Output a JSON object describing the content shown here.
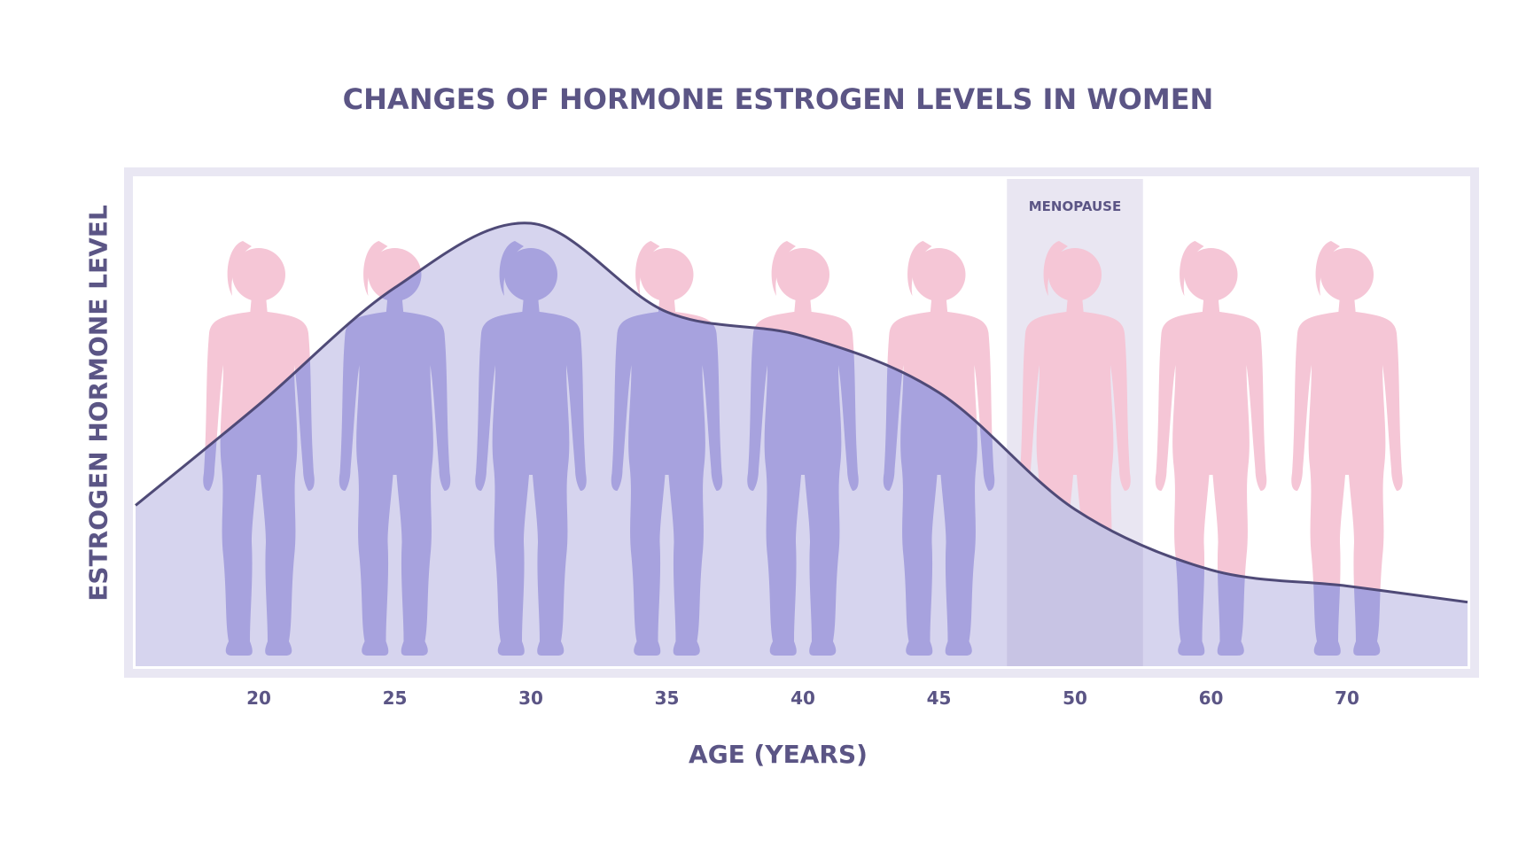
{
  "chart_data": {
    "type": "area",
    "title": "CHANGES OF HORMONE ESTROGEN LEVELS IN WOMEN",
    "xlabel": "AGE (YEARS)",
    "ylabel": "ESTROGEN HORMONE LEVEL",
    "categories": [
      "20",
      "25",
      "30",
      "35",
      "40",
      "45",
      "50",
      "60",
      "70"
    ],
    "annotation": {
      "label": "MENOPAUSE",
      "category": "50"
    },
    "series": [
      {
        "values": [
          0.55,
          0.84,
          1.0,
          0.78,
          0.72,
          0.58,
          0.29,
          0.14,
          0.1
        ]
      }
    ],
    "ylim": [
      0,
      1
    ],
    "grid": false,
    "figures_per_category": 1,
    "colors": {
      "text": "#5b5585",
      "frame": "#e9e7f3",
      "area": "#d6d4ee",
      "line": "#4f4a77",
      "figure_low": "#f5c6d6",
      "figure_high": "#a7a2de",
      "menopause_band": "#e9e6f2",
      "menopause_band_overlay": "#c8c4e4"
    }
  }
}
